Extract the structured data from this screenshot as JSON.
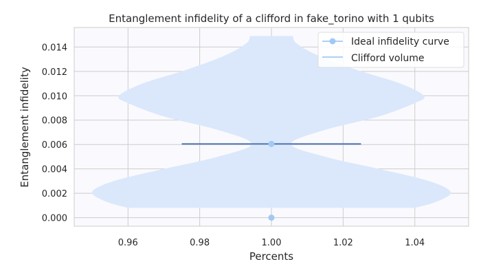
{
  "chart_data": {
    "type": "violin",
    "title": "Entanglement infidelity of a clifford in fake_torino with 1 qubits",
    "xlabel": "Percents",
    "ylabel": "Entanglement infidelity",
    "xlim": [
      0.945,
      1.055
    ],
    "ylim": [
      -0.0007,
      0.0156
    ],
    "xticks": [
      0.96,
      0.98,
      1.0,
      1.02,
      1.04
    ],
    "xtick_labels": [
      "0.96",
      "0.98",
      "1.00",
      "1.02",
      "1.04"
    ],
    "yticks": [
      0.0,
      0.002,
      0.004,
      0.006,
      0.008,
      0.01,
      0.012,
      0.014
    ],
    "ytick_labels": [
      "0.000",
      "0.002",
      "0.004",
      "0.006",
      "0.008",
      "0.010",
      "0.012",
      "0.014"
    ],
    "grid": true,
    "legend_position": "top-right",
    "series": [
      {
        "name": "Ideal infidelity curve",
        "kind": "line-markers",
        "color": "#a1c9f4",
        "points": [
          {
            "x": 1.0,
            "y": 0.0
          },
          {
            "x": 1.0,
            "y": 0.00605
          }
        ]
      },
      {
        "name": "Clifford volume",
        "kind": "violin",
        "fill_color": "#dbe8fb",
        "median_color": "#4c72b0",
        "position": 1.0,
        "median": 0.00605,
        "median_halfwidth": 0.025,
        "density_profile": [
          {
            "y": 0.0008,
            "halfwidth": 0.04
          },
          {
            "y": 0.0013,
            "halfwidth": 0.046
          },
          {
            "y": 0.0021,
            "halfwidth": 0.05
          },
          {
            "y": 0.003,
            "halfwidth": 0.044
          },
          {
            "y": 0.004,
            "halfwidth": 0.03
          },
          {
            "y": 0.005,
            "halfwidth": 0.015
          },
          {
            "y": 0.00605,
            "halfwidth": 0.0055
          },
          {
            "y": 0.0072,
            "halfwidth": 0.015
          },
          {
            "y": 0.0083,
            "halfwidth": 0.03
          },
          {
            "y": 0.0094,
            "halfwidth": 0.04
          },
          {
            "y": 0.01,
            "halfwidth": 0.0425
          },
          {
            "y": 0.011,
            "halfwidth": 0.036
          },
          {
            "y": 0.0121,
            "halfwidth": 0.024
          },
          {
            "y": 0.0133,
            "halfwidth": 0.013
          },
          {
            "y": 0.0143,
            "halfwidth": 0.007
          },
          {
            "y": 0.0149,
            "halfwidth": 0.006
          }
        ]
      }
    ]
  }
}
